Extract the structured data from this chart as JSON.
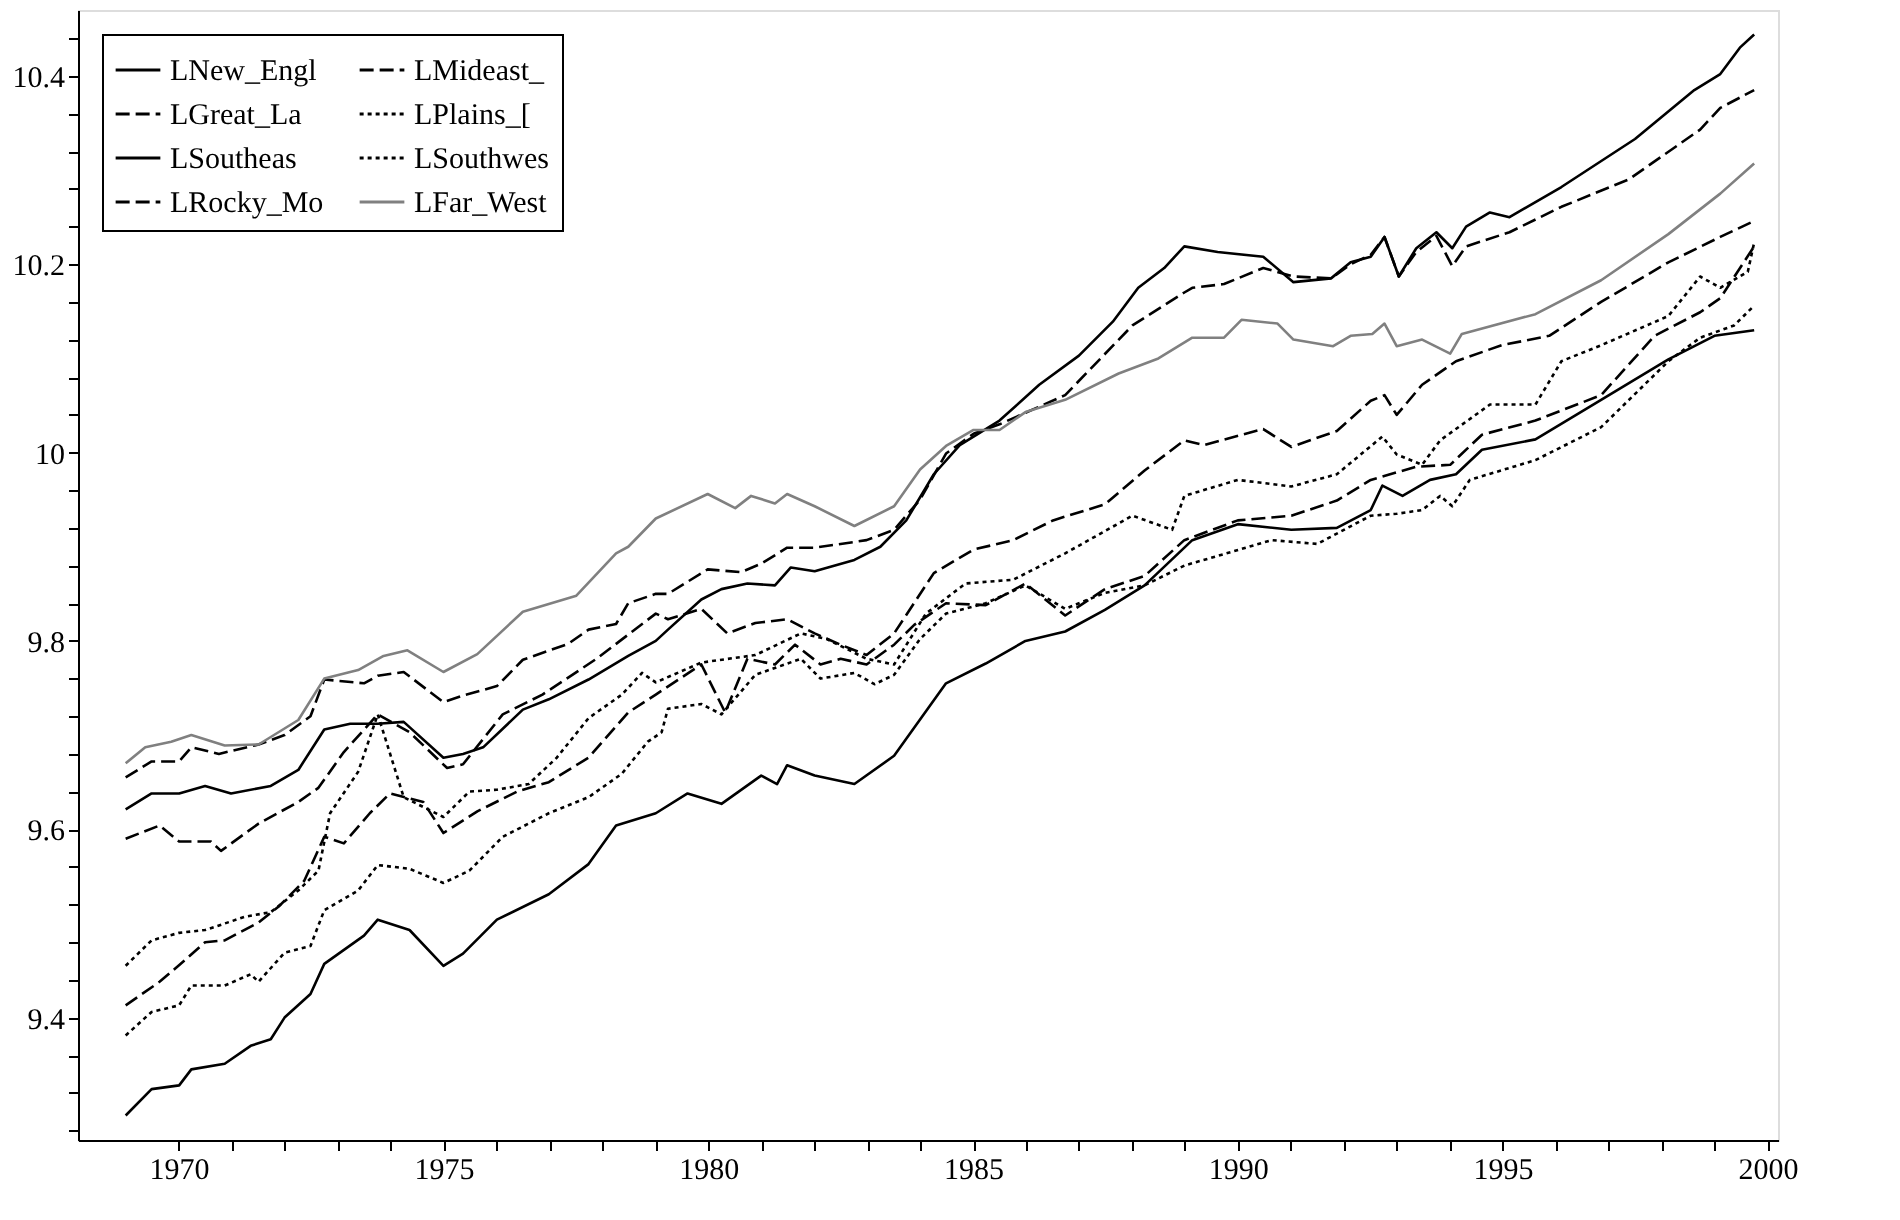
{
  "chart_data": {
    "type": "line",
    "xlim": [
      1968.1,
      2000.2
    ],
    "ylim": [
      9.27,
      10.47
    ],
    "xticks": [
      1970,
      {
        "value": 1971,
        "label": null
      },
      {
        "value": 1972,
        "label": null
      },
      {
        "value": 1973,
        "label": null
      },
      {
        "value": 1974,
        "label": null
      },
      1975,
      {
        "value": 1976,
        "label": null
      },
      {
        "value": 1977,
        "label": null
      },
      {
        "value": 1978,
        "label": null
      },
      {
        "value": 1979,
        "label": null
      },
      1980,
      {
        "value": 1981,
        "label": null
      },
      {
        "value": 1982,
        "label": null
      },
      {
        "value": 1983,
        "label": null
      },
      {
        "value": 1984,
        "label": null
      },
      1985,
      {
        "value": 1986,
        "label": null
      },
      {
        "value": 1987,
        "label": null
      },
      {
        "value": 1988,
        "label": null
      },
      {
        "value": 1989,
        "label": null
      },
      1990,
      {
        "value": 1991,
        "label": null
      },
      {
        "value": 1992,
        "label": null
      },
      {
        "value": 1993,
        "label": null
      },
      {
        "value": 1994,
        "label": null
      },
      1995,
      {
        "value": 1996,
        "label": null
      },
      {
        "value": 1997,
        "label": null
      },
      {
        "value": 1998,
        "label": null
      },
      {
        "value": 1999,
        "label": null
      },
      2000
    ],
    "yticks": [
      {
        "value": 9.28,
        "label": null
      },
      {
        "value": 9.32,
        "label": null
      },
      {
        "value": 9.36,
        "label": null
      },
      9.4,
      {
        "value": 9.44,
        "label": null
      },
      {
        "value": 9.48,
        "label": null
      },
      {
        "value": 9.52,
        "label": null
      },
      {
        "value": 9.56,
        "label": null
      },
      9.6,
      {
        "value": 9.64,
        "label": null
      },
      {
        "value": 9.68,
        "label": null
      },
      {
        "value": 9.72,
        "label": null
      },
      {
        "value": 9.76,
        "label": null
      },
      9.8,
      {
        "value": 9.84,
        "label": null
      },
      {
        "value": 9.88,
        "label": null
      },
      {
        "value": 9.92,
        "label": null
      },
      {
        "value": 9.96,
        "label": null
      },
      10,
      {
        "value": 10.04,
        "label": null
      },
      {
        "value": 10.08,
        "label": null
      },
      {
        "value": 10.12,
        "label": null
      },
      {
        "value": 10.16,
        "label": null
      },
      10.2,
      {
        "value": 10.24,
        "label": null
      },
      {
        "value": 10.28,
        "label": null
      },
      {
        "value": 10.32,
        "label": null
      },
      {
        "value": 10.36,
        "label": null
      },
      10.4,
      {
        "value": 10.44,
        "label": null
      }
    ],
    "grid": false,
    "legend": "top left",
    "series": [
      {
        "name": "LNew_Engl",
        "color": "#000000",
        "line_style": "solid",
        "x": [
          1969.0,
          1969.49,
          1970.01,
          1970.5,
          1970.99,
          1971.74,
          1972.26,
          1972.75,
          1973.24,
          1973.76,
          1974.25,
          1975.0,
          1975.37,
          1975.75,
          1976.5,
          1976.99,
          1977.74,
          1978.49,
          1979.01,
          1979.24,
          1979.87,
          1980.25,
          1980.74,
          1981.26,
          1981.56,
          1982.01,
          1982.76,
          1983.25,
          1983.74,
          1984.26,
          1984.75,
          1985.5,
          1986.25,
          1987.0,
          1987.64,
          1988.12,
          1988.61,
          1988.99,
          1989.62,
          1990.48,
          1991.05,
          1991.76,
          1992.13,
          1992.51,
          1992.77,
          1993.04,
          1993.37,
          1993.75,
          1994.05,
          1994.31,
          1994.76,
          1995.13,
          1996.11,
          1997.5,
          1998.62,
          1999.11,
          1999.48,
          1999.75
        ],
        "values": [
          9.621,
          9.638,
          9.638,
          9.646,
          9.638,
          9.646,
          9.663,
          9.706,
          9.712,
          9.712,
          9.714,
          9.676,
          9.68,
          9.687,
          9.727,
          9.738,
          9.759,
          9.784,
          9.8,
          9.812,
          9.844,
          9.855,
          9.861,
          9.859,
          9.878,
          9.874,
          9.886,
          9.9,
          9.928,
          9.977,
          10.008,
          10.034,
          10.072,
          10.103,
          10.139,
          10.175,
          10.196,
          10.219,
          10.213,
          10.208,
          10.181,
          10.185,
          10.202,
          10.208,
          10.229,
          10.187,
          10.217,
          10.234,
          10.217,
          10.24,
          10.255,
          10.25,
          10.282,
          10.333,
          10.385,
          10.402,
          10.43,
          10.444
        ]
      },
      {
        "name": "LMideast_",
        "color": "#000000",
        "line_style": "dashed",
        "x": [
          1969.0,
          1969.49,
          1970.01,
          1970.24,
          1970.76,
          1971.51,
          1972.0,
          1972.49,
          1972.75,
          1973.5,
          1973.76,
          1974.25,
          1975.0,
          1975.37,
          1976.01,
          1976.5,
          1977.36,
          1977.74,
          1978.26,
          1978.49,
          1979.01,
          1979.24,
          1979.99,
          1980.62,
          1981.0,
          1981.49,
          1982.01,
          1982.5,
          1982.99,
          1983.51,
          1984.0,
          1984.49,
          1985.01,
          1985.5,
          1986.74,
          1988.01,
          1988.99,
          1989.14,
          1989.74,
          1990.48,
          1991.05,
          1991.76,
          1992.13,
          1992.51,
          1992.77,
          1993.04,
          1993.37,
          1993.75,
          1994.05,
          1994.31,
          1995.13,
          1996.11,
          1997.38,
          1998.73,
          1999.11,
          1999.75
        ],
        "values": [
          9.655,
          9.672,
          9.672,
          9.687,
          9.68,
          9.69,
          9.7,
          9.72,
          9.759,
          9.755,
          9.763,
          9.767,
          9.735,
          9.742,
          9.752,
          9.78,
          9.797,
          9.812,
          9.818,
          9.84,
          9.85,
          9.85,
          9.876,
          9.873,
          9.882,
          9.899,
          9.899,
          9.903,
          9.907,
          9.918,
          9.95,
          9.999,
          10.02,
          10.03,
          10.061,
          10.135,
          10.17,
          10.175,
          10.179,
          10.196,
          10.187,
          10.185,
          10.2,
          10.21,
          10.229,
          10.187,
          10.213,
          10.23,
          10.198,
          10.219,
          10.234,
          10.261,
          10.29,
          10.343,
          10.366,
          10.385
        ]
      },
      {
        "name": "LGreat_La",
        "color": "#000000",
        "line_style": "dashed",
        "x": [
          1969.0,
          1969.64,
          1970.01,
          1970.61,
          1970.8,
          1971.51,
          1972.26,
          1972.64,
          1973.12,
          1973.76,
          1974.36,
          1975.07,
          1975.37,
          1976.12,
          1976.87,
          1977.89,
          1979.01,
          1979.24,
          1979.87,
          1980.36,
          1980.89,
          1981.49,
          1982.01,
          1982.5,
          1982.99,
          1983.51,
          1984.26,
          1985.01,
          1985.76,
          1986.51,
          1987.49,
          1988.24,
          1988.99,
          1989.36,
          1990.48,
          1991.01,
          1991.87,
          1992.51,
          1992.77,
          1993.0,
          1993.48,
          1994.12,
          1994.98,
          1995.88,
          1996.86,
          1998.13,
          1999.11,
          1999.75
        ],
        "values": [
          9.59,
          9.604,
          9.587,
          9.587,
          9.577,
          9.606,
          9.629,
          9.644,
          9.682,
          9.722,
          9.703,
          9.665,
          9.669,
          9.722,
          9.743,
          9.781,
          9.829,
          9.823,
          9.834,
          9.808,
          9.819,
          9.823,
          9.808,
          9.796,
          9.785,
          9.808,
          9.872,
          9.897,
          9.907,
          9.928,
          9.945,
          9.981,
          10.013,
          10.008,
          10.025,
          10.006,
          10.023,
          10.055,
          10.061,
          10.04,
          10.072,
          10.097,
          10.114,
          10.124,
          10.16,
          10.202,
          10.229,
          10.246
        ]
      },
      {
        "name": "LPlains_[",
        "color": "#000000",
        "line_style": "dotted",
        "x": [
          1969.0,
          1969.49,
          1970.01,
          1970.5,
          1971.25,
          1971.74,
          1972.26,
          1972.64,
          1972.86,
          1973.39,
          1973.76,
          1974.25,
          1975.0,
          1975.49,
          1976.01,
          1976.61,
          1977.14,
          1977.74,
          1978.37,
          1978.75,
          1979.01,
          1979.87,
          1980.89,
          1981.75,
          1982.24,
          1982.99,
          1983.51,
          1984.11,
          1984.86,
          1985.76,
          1986.74,
          1988.01,
          1988.76,
          1988.99,
          1990.0,
          1991.01,
          1991.87,
          1992.73,
          1993.0,
          1993.48,
          1993.82,
          1994.76,
          1995.62,
          1996.11,
          1996.86,
          1998.13,
          1998.73,
          1999.11,
          1999.63,
          1999.75
        ],
        "values": [
          9.455,
          9.482,
          9.49,
          9.493,
          9.507,
          9.512,
          9.535,
          9.556,
          9.617,
          9.661,
          9.722,
          9.634,
          9.613,
          9.64,
          9.642,
          9.648,
          9.676,
          9.718,
          9.743,
          9.766,
          9.756,
          9.777,
          9.785,
          9.808,
          9.802,
          9.781,
          9.775,
          9.829,
          9.861,
          9.865,
          9.893,
          9.933,
          9.918,
          9.954,
          9.971,
          9.964,
          9.977,
          10.017,
          9.998,
          9.987,
          10.013,
          10.051,
          10.051,
          10.097,
          10.114,
          10.145,
          10.187,
          10.175,
          10.192,
          10.223
        ]
      },
      {
        "name": "LSoutheas",
        "color": "#000000",
        "line_style": "solid",
        "x": [
          1969.0,
          1969.49,
          1970.01,
          1970.24,
          1970.87,
          1971.36,
          1971.74,
          1972.0,
          1972.49,
          1972.75,
          1973.5,
          1973.76,
          1974.36,
          1975.0,
          1975.37,
          1976.01,
          1976.99,
          1977.74,
          1978.26,
          1979.01,
          1979.61,
          1980.25,
          1981.0,
          1981.3,
          1981.49,
          1982.01,
          1982.76,
          1983.51,
          1984.49,
          1985.24,
          1985.99,
          1986.74,
          1987.49,
          1988.24,
          1989.14,
          1990.0,
          1991.01,
          1991.87,
          1992.51,
          1992.73,
          1993.11,
          1993.63,
          1994.12,
          1994.61,
          1995.62,
          1996.86,
          1998.13,
          1999.0,
          1999.75
        ],
        "values": [
          9.296,
          9.324,
          9.328,
          9.345,
          9.351,
          9.37,
          9.377,
          9.4,
          9.425,
          9.457,
          9.487,
          9.504,
          9.493,
          9.455,
          9.468,
          9.504,
          9.531,
          9.563,
          9.604,
          9.617,
          9.638,
          9.627,
          9.657,
          9.648,
          9.668,
          9.657,
          9.648,
          9.678,
          9.755,
          9.776,
          9.8,
          9.81,
          9.833,
          9.859,
          9.907,
          9.924,
          9.918,
          9.92,
          9.939,
          9.965,
          9.954,
          9.971,
          9.977,
          10.003,
          10.014,
          10.056,
          10.099,
          10.124,
          10.13
        ]
      },
      {
        "name": "LSouthwes",
        "color": "#000000",
        "line_style": "dotted",
        "x": [
          1969.0,
          1969.49,
          1970.01,
          1970.24,
          1970.87,
          1971.36,
          1971.51,
          1972.0,
          1972.49,
          1972.75,
          1973.39,
          1973.76,
          1974.36,
          1975.0,
          1975.49,
          1976.12,
          1976.99,
          1977.74,
          1978.37,
          1978.86,
          1979.12,
          1979.24,
          1979.87,
          1980.25,
          1980.89,
          1981.75,
          1982.12,
          1982.76,
          1983.14,
          1983.51,
          1984.0,
          1984.49,
          1985.24,
          1985.99,
          1986.74,
          1987.49,
          1988.24,
          1988.99,
          1990.64,
          1991.5,
          1992.51,
          1993.0,
          1993.48,
          1993.82,
          1994.05,
          1994.38,
          1995.62,
          1996.86,
          1998.13,
          1998.73,
          1999.37,
          1999.75
        ],
        "values": [
          9.381,
          9.406,
          9.413,
          9.434,
          9.434,
          9.446,
          9.438,
          9.469,
          9.476,
          9.514,
          9.535,
          9.562,
          9.558,
          9.543,
          9.556,
          9.592,
          9.617,
          9.634,
          9.659,
          9.693,
          9.703,
          9.728,
          9.733,
          9.722,
          9.764,
          9.781,
          9.76,
          9.766,
          9.754,
          9.764,
          9.802,
          9.829,
          9.84,
          9.859,
          9.834,
          9.851,
          9.859,
          9.88,
          9.907,
          9.903,
          9.933,
          9.935,
          9.939,
          9.954,
          9.943,
          9.971,
          9.992,
          10.027,
          10.097,
          10.122,
          10.135,
          10.156
        ]
      },
      {
        "name": "LRocky_Mo",
        "color": "#000000",
        "line_style": "dashed",
        "x": [
          1969.0,
          1969.64,
          1970.12,
          1970.5,
          1970.87,
          1971.51,
          1971.89,
          1972.37,
          1972.75,
          1973.12,
          1973.61,
          1973.99,
          1974.62,
          1975.0,
          1975.64,
          1976.39,
          1976.99,
          1977.74,
          1978.49,
          1979.01,
          1979.87,
          1980.32,
          1980.74,
          1981.26,
          1981.64,
          1982.12,
          1982.5,
          1982.99,
          1983.51,
          1983.89,
          1984.49,
          1985.24,
          1985.99,
          1986.74,
          1987.49,
          1988.24,
          1988.99,
          1990.0,
          1991.01,
          1991.87,
          1992.51,
          1993.37,
          1994.01,
          1994.61,
          1995.62,
          1996.86,
          1997.87,
          1998.73,
          1999.11,
          1999.75
        ],
        "values": [
          9.413,
          9.438,
          9.461,
          9.48,
          9.482,
          9.501,
          9.518,
          9.545,
          9.592,
          9.585,
          9.617,
          9.638,
          9.629,
          9.596,
          9.619,
          9.64,
          9.65,
          9.676,
          9.724,
          9.743,
          9.775,
          9.724,
          9.781,
          9.775,
          9.796,
          9.775,
          9.781,
          9.775,
          9.796,
          9.817,
          9.84,
          9.838,
          9.861,
          9.827,
          9.855,
          9.869,
          9.907,
          9.928,
          9.933,
          9.949,
          9.971,
          9.985,
          9.987,
          10.019,
          10.034,
          10.061,
          10.124,
          10.149,
          10.164,
          10.219
        ]
      },
      {
        "name": "LFar_West",
        "color": "#808080",
        "line_style": "solid",
        "x": [
          1969.0,
          1969.37,
          1969.86,
          1970.24,
          1970.87,
          1971.51,
          1972.26,
          1972.75,
          1973.39,
          1973.87,
          1974.32,
          1975.0,
          1975.64,
          1976.5,
          1977.51,
          1978.26,
          1978.49,
          1979.01,
          1979.99,
          1980.51,
          1980.81,
          1981.26,
          1981.49,
          1982.01,
          1982.76,
          1983.51,
          1984.0,
          1984.49,
          1985.01,
          1985.5,
          1985.99,
          1986.74,
          1987.75,
          1988.5,
          1989.14,
          1989.74,
          1990.07,
          1990.75,
          1991.05,
          1991.8,
          1992.13,
          1992.54,
          1992.77,
          1993.0,
          1993.48,
          1994.01,
          1994.23,
          1995.62,
          1996.86,
          1998.13,
          1999.11,
          1999.75
        ],
        "values": [
          9.67,
          9.687,
          9.693,
          9.7,
          9.689,
          9.69,
          9.716,
          9.76,
          9.769,
          9.784,
          9.79,
          9.767,
          9.786,
          9.831,
          9.848,
          9.893,
          9.9,
          9.93,
          9.956,
          9.941,
          9.954,
          9.946,
          9.956,
          9.943,
          9.922,
          9.943,
          9.982,
          10.007,
          10.024,
          10.024,
          10.043,
          10.056,
          10.084,
          10.1,
          10.122,
          10.122,
          10.141,
          10.137,
          10.12,
          10.113,
          10.124,
          10.126,
          10.137,
          10.113,
          10.12,
          10.105,
          10.126,
          10.147,
          10.183,
          10.232,
          10.275,
          10.307
        ]
      }
    ]
  }
}
